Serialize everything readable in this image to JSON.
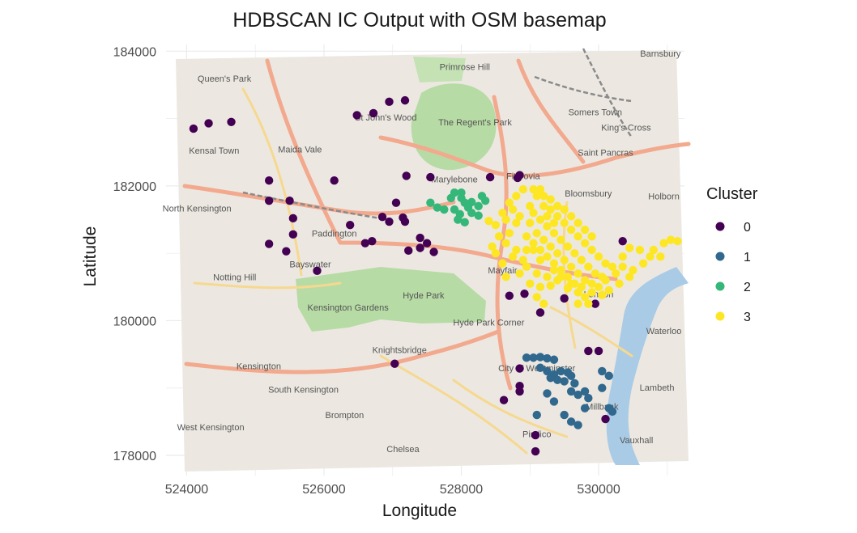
{
  "chart_data": {
    "type": "scatter",
    "title": "HDBSCAN IC Output with OSM basemap",
    "xlabel": "Longitude",
    "ylabel": "Latitude",
    "xlim": [
      523700,
      531250
    ],
    "ylim": [
      177700,
      184100
    ],
    "x_ticks": [
      524000,
      526000,
      528000,
      530000
    ],
    "y_ticks": [
      178000,
      180000,
      182000,
      184000
    ],
    "grid": true,
    "legend": {
      "title": "Cluster",
      "position": "right",
      "entries": [
        "0",
        "1",
        "2",
        "3"
      ]
    },
    "colors": {
      "0": "#440154",
      "1": "#31688e",
      "2": "#35b779",
      "3": "#fde725"
    },
    "basemap_labels": [
      {
        "text": "Queen's Park",
        "x": 524550,
        "y": 183550
      },
      {
        "text": "St John's Wood",
        "x": 526900,
        "y": 182970
      },
      {
        "text": "Primrose Hill",
        "x": 528050,
        "y": 183720
      },
      {
        "text": "The Regent's Park",
        "x": 528200,
        "y": 182900
      },
      {
        "text": "Somers Town",
        "x": 529950,
        "y": 183050
      },
      {
        "text": "Barnsbury",
        "x": 530900,
        "y": 183920
      },
      {
        "text": "King's Cross",
        "x": 530400,
        "y": 182820
      },
      {
        "text": "Kensal Town",
        "x": 524400,
        "y": 182480
      },
      {
        "text": "Maida Vale",
        "x": 525650,
        "y": 182500
      },
      {
        "text": "Saint Pancras",
        "x": 530100,
        "y": 182450
      },
      {
        "text": "Marylebone",
        "x": 527900,
        "y": 182050
      },
      {
        "text": "Fitzrovia",
        "x": 528900,
        "y": 182100
      },
      {
        "text": "Bloomsbury",
        "x": 529850,
        "y": 181840
      },
      {
        "text": "Holborn",
        "x": 530950,
        "y": 181800
      },
      {
        "text": "North Kensington",
        "x": 524150,
        "y": 181620
      },
      {
        "text": "Paddington",
        "x": 526150,
        "y": 181250
      },
      {
        "text": "Bayswater",
        "x": 525800,
        "y": 180790
      },
      {
        "text": "Notting Hill",
        "x": 524700,
        "y": 180600
      },
      {
        "text": "Mayfair",
        "x": 528600,
        "y": 180700
      },
      {
        "text": "London",
        "x": 530000,
        "y": 180350
      },
      {
        "text": "Kensington Gardens",
        "x": 526350,
        "y": 180150
      },
      {
        "text": "Hyde Park",
        "x": 527450,
        "y": 180330
      },
      {
        "text": "Hyde Park Corner",
        "x": 528400,
        "y": 179930
      },
      {
        "text": "Knightsbridge",
        "x": 527100,
        "y": 179520
      },
      {
        "text": "Waterloo",
        "x": 530950,
        "y": 179800
      },
      {
        "text": "Kensington",
        "x": 525050,
        "y": 179280
      },
      {
        "text": "City of Westminster",
        "x": 529100,
        "y": 179250
      },
      {
        "text": "Lambeth",
        "x": 530850,
        "y": 178960
      },
      {
        "text": "South Kensington",
        "x": 525700,
        "y": 178930
      },
      {
        "text": "Millbank",
        "x": 530050,
        "y": 178680
      },
      {
        "text": "Brompton",
        "x": 526300,
        "y": 178550
      },
      {
        "text": "West Kensington",
        "x": 524350,
        "y": 178370
      },
      {
        "text": "Pimlico",
        "x": 529100,
        "y": 178270
      },
      {
        "text": "Chelsea",
        "x": 527150,
        "y": 178050
      },
      {
        "text": "Vauxhall",
        "x": 530550,
        "y": 178180
      }
    ],
    "series": [
      {
        "name": "0",
        "points": [
          [
            524100,
            182850
          ],
          [
            524320,
            182930
          ],
          [
            524650,
            182950
          ],
          [
            526480,
            183050
          ],
          [
            526720,
            183080
          ],
          [
            526950,
            183250
          ],
          [
            527180,
            183270
          ],
          [
            525200,
            182080
          ],
          [
            526150,
            182080
          ],
          [
            525200,
            181780
          ],
          [
            525500,
            181780
          ],
          [
            525550,
            181520
          ],
          [
            525550,
            181280
          ],
          [
            525200,
            181140
          ],
          [
            525450,
            181030
          ],
          [
            525900,
            180740
          ],
          [
            526380,
            181420
          ],
          [
            526600,
            181150
          ],
          [
            526700,
            181180
          ],
          [
            526850,
            181540
          ],
          [
            526950,
            181470
          ],
          [
            527180,
            181470
          ],
          [
            527150,
            181530
          ],
          [
            527050,
            181750
          ],
          [
            527200,
            182150
          ],
          [
            527550,
            182130
          ],
          [
            528420,
            182130
          ],
          [
            528820,
            182120
          ],
          [
            528850,
            182160
          ],
          [
            527400,
            181230
          ],
          [
            527400,
            181080
          ],
          [
            527500,
            181150
          ],
          [
            527600,
            181020
          ],
          [
            527230,
            181040
          ],
          [
            528700,
            180370
          ],
          [
            528920,
            180400
          ],
          [
            529150,
            180120
          ],
          [
            529500,
            180330
          ],
          [
            529950,
            180250
          ],
          [
            530350,
            181180
          ],
          [
            527030,
            179360
          ],
          [
            528850,
            179290
          ],
          [
            528850,
            179030
          ],
          [
            528850,
            178950
          ],
          [
            528620,
            178820
          ],
          [
            529080,
            178300
          ],
          [
            529080,
            178060
          ],
          [
            530100,
            178540
          ],
          [
            529850,
            179550
          ],
          [
            530000,
            179550
          ]
        ]
      },
      {
        "name": "1",
        "points": [
          [
            528950,
            179450
          ],
          [
            529050,
            179450
          ],
          [
            529150,
            179460
          ],
          [
            529250,
            179440
          ],
          [
            529350,
            179420
          ],
          [
            529150,
            179300
          ],
          [
            529250,
            179250
          ],
          [
            529350,
            179200
          ],
          [
            529450,
            179250
          ],
          [
            529550,
            179230
          ],
          [
            529600,
            179180
          ],
          [
            529400,
            179120
          ],
          [
            529300,
            179150
          ],
          [
            529500,
            179100
          ],
          [
            529650,
            179070
          ],
          [
            529600,
            178950
          ],
          [
            529700,
            178900
          ],
          [
            529800,
            178950
          ],
          [
            529850,
            178850
          ],
          [
            529250,
            178920
          ],
          [
            529350,
            178800
          ],
          [
            529500,
            178600
          ],
          [
            529600,
            178500
          ],
          [
            529700,
            178450
          ],
          [
            530150,
            178700
          ],
          [
            530200,
            178650
          ],
          [
            530050,
            179250
          ],
          [
            530150,
            179180
          ],
          [
            530050,
            179000
          ],
          [
            529800,
            178700
          ],
          [
            529100,
            178600
          ]
        ]
      },
      {
        "name": "2",
        "points": [
          [
            527550,
            181750
          ],
          [
            527650,
            181680
          ],
          [
            527750,
            181650
          ],
          [
            527850,
            181820
          ],
          [
            527900,
            181650
          ],
          [
            527980,
            181580
          ],
          [
            528050,
            181750
          ],
          [
            528100,
            181680
          ],
          [
            528000,
            181820
          ],
          [
            528150,
            181760
          ],
          [
            527900,
            181900
          ],
          [
            528000,
            181900
          ],
          [
            528300,
            181850
          ],
          [
            528350,
            181780
          ],
          [
            528250,
            181700
          ],
          [
            528150,
            181600
          ],
          [
            527950,
            181500
          ],
          [
            528050,
            181460
          ],
          [
            528250,
            181560
          ]
        ]
      },
      {
        "name": "3",
        "points": [
          [
            528400,
            181480
          ],
          [
            528500,
            181420
          ],
          [
            528600,
            181600
          ],
          [
            528700,
            181750
          ],
          [
            528800,
            181850
          ],
          [
            528900,
            181950
          ],
          [
            528750,
            181650
          ],
          [
            528650,
            181500
          ],
          [
            528550,
            181250
          ],
          [
            528650,
            181150
          ],
          [
            528800,
            181050
          ],
          [
            528900,
            180900
          ],
          [
            528950,
            180800
          ],
          [
            529100,
            180700
          ],
          [
            529250,
            180650
          ],
          [
            529150,
            180500
          ],
          [
            529300,
            180520
          ],
          [
            529400,
            180600
          ],
          [
            529550,
            180480
          ],
          [
            529700,
            180420
          ],
          [
            529800,
            180350
          ],
          [
            529900,
            180420
          ],
          [
            530000,
            180500
          ],
          [
            530100,
            180600
          ],
          [
            530250,
            180700
          ],
          [
            530350,
            180800
          ],
          [
            530450,
            180650
          ],
          [
            530300,
            180550
          ],
          [
            530150,
            180450
          ],
          [
            530050,
            180380
          ],
          [
            530500,
            180750
          ],
          [
            530650,
            180850
          ],
          [
            530800,
            181050
          ],
          [
            530950,
            181150
          ],
          [
            531050,
            181200
          ],
          [
            531150,
            181180
          ],
          [
            530900,
            180950
          ],
          [
            530750,
            180950
          ],
          [
            530600,
            181050
          ],
          [
            530450,
            181080
          ],
          [
            529000,
            181700
          ],
          [
            529100,
            181850
          ],
          [
            529200,
            181700
          ],
          [
            529300,
            181650
          ],
          [
            529400,
            181550
          ],
          [
            529500,
            181450
          ],
          [
            529600,
            181350
          ],
          [
            529700,
            181250
          ],
          [
            529800,
            181150
          ],
          [
            529900,
            181050
          ],
          [
            530000,
            180950
          ],
          [
            530100,
            180850
          ],
          [
            529000,
            181450
          ],
          [
            529100,
            181300
          ],
          [
            529200,
            181200
          ],
          [
            529300,
            181100
          ],
          [
            529400,
            181000
          ],
          [
            529500,
            180900
          ],
          [
            529600,
            180800
          ],
          [
            529700,
            180700
          ],
          [
            529800,
            180600
          ],
          [
            528950,
            181250
          ],
          [
            529050,
            181150
          ],
          [
            529150,
            181050
          ],
          [
            529250,
            180950
          ],
          [
            529350,
            180850
          ],
          [
            529450,
            180750
          ],
          [
            529550,
            180650
          ],
          [
            529650,
            180550
          ],
          [
            528700,
            181300
          ],
          [
            528800,
            181450
          ],
          [
            528850,
            181550
          ],
          [
            529050,
            181600
          ],
          [
            529150,
            181500
          ],
          [
            529250,
            181400
          ],
          [
            529350,
            181300
          ],
          [
            529450,
            181200
          ],
          [
            529550,
            181100
          ],
          [
            529650,
            181000
          ],
          [
            529750,
            180900
          ],
          [
            529850,
            180800
          ],
          [
            529950,
            180700
          ],
          [
            529200,
            181850
          ],
          [
            529300,
            181800
          ],
          [
            529400,
            181700
          ],
          [
            529500,
            181650
          ],
          [
            529600,
            181550
          ],
          [
            529700,
            181450
          ],
          [
            529800,
            181350
          ],
          [
            529900,
            181250
          ],
          [
            528600,
            180850
          ],
          [
            528750,
            180950
          ],
          [
            528850,
            180700
          ],
          [
            529000,
            180550
          ],
          [
            529050,
            181050
          ],
          [
            529150,
            180900
          ],
          [
            529350,
            180750
          ],
          [
            529450,
            180650
          ],
          [
            529600,
            180550
          ],
          [
            529750,
            180500
          ],
          [
            529900,
            180550
          ],
          [
            530050,
            180650
          ],
          [
            530200,
            180800
          ],
          [
            530350,
            180950
          ],
          [
            528450,
            181100
          ],
          [
            528500,
            181000
          ],
          [
            528650,
            180650
          ],
          [
            529100,
            180350
          ],
          [
            529200,
            180250
          ],
          [
            529700,
            180250
          ],
          [
            529850,
            180250
          ],
          [
            529050,
            181950
          ],
          [
            529150,
            181950
          ],
          [
            528950,
            181050
          ],
          [
            529250,
            181550
          ],
          [
            529350,
            181450
          ]
        ]
      }
    ]
  }
}
